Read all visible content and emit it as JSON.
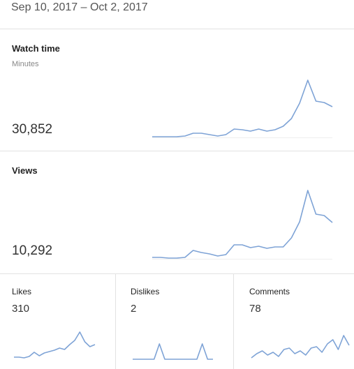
{
  "header": {
    "date_range": "Sep 10, 2017 – Oct 2, 2017"
  },
  "line_color": "#7ea3d6",
  "panels": [
    {
      "title": "Watch time",
      "subtitle": "Minutes",
      "value": "30,852",
      "sparkline": {
        "ylim": [
          0,
          90
        ],
        "values": [
          1,
          1,
          1,
          1,
          2,
          6,
          6,
          4,
          2,
          4,
          12,
          11,
          9,
          12,
          9,
          11,
          16,
          27,
          49,
          82,
          52,
          50,
          44
        ]
      }
    },
    {
      "title": "Views",
      "value": "10,292",
      "sparkline": {
        "ylim": [
          0,
          100
        ],
        "values": [
          2,
          2,
          1,
          1,
          2,
          12,
          9,
          7,
          4,
          6,
          20,
          20,
          16,
          18,
          15,
          17,
          17,
          30,
          53,
          98,
          64,
          62,
          52
        ]
      }
    },
    {
      "title": "Likes",
      "value": "310",
      "sparkline": {
        "ylim": [
          0,
          45
        ],
        "values": [
          3,
          3,
          2,
          4,
          10,
          5,
          9,
          11,
          13,
          16,
          14,
          21,
          27,
          39,
          25,
          18,
          21
        ]
      }
    },
    {
      "title": "Dislikes",
      "value": "2",
      "sparkline": {
        "ylim": [
          0,
          45
        ],
        "values": [
          0,
          0,
          0,
          0,
          0,
          22,
          0,
          0,
          0,
          0,
          0,
          0,
          0,
          22,
          0,
          0
        ]
      }
    },
    {
      "title": "Comments",
      "value": "78",
      "sparkline": {
        "ylim": [
          0,
          45
        ],
        "values": [
          2,
          8,
          12,
          6,
          10,
          4,
          14,
          16,
          8,
          12,
          6,
          16,
          18,
          10,
          22,
          28,
          14,
          34,
          20
        ]
      }
    }
  ]
}
